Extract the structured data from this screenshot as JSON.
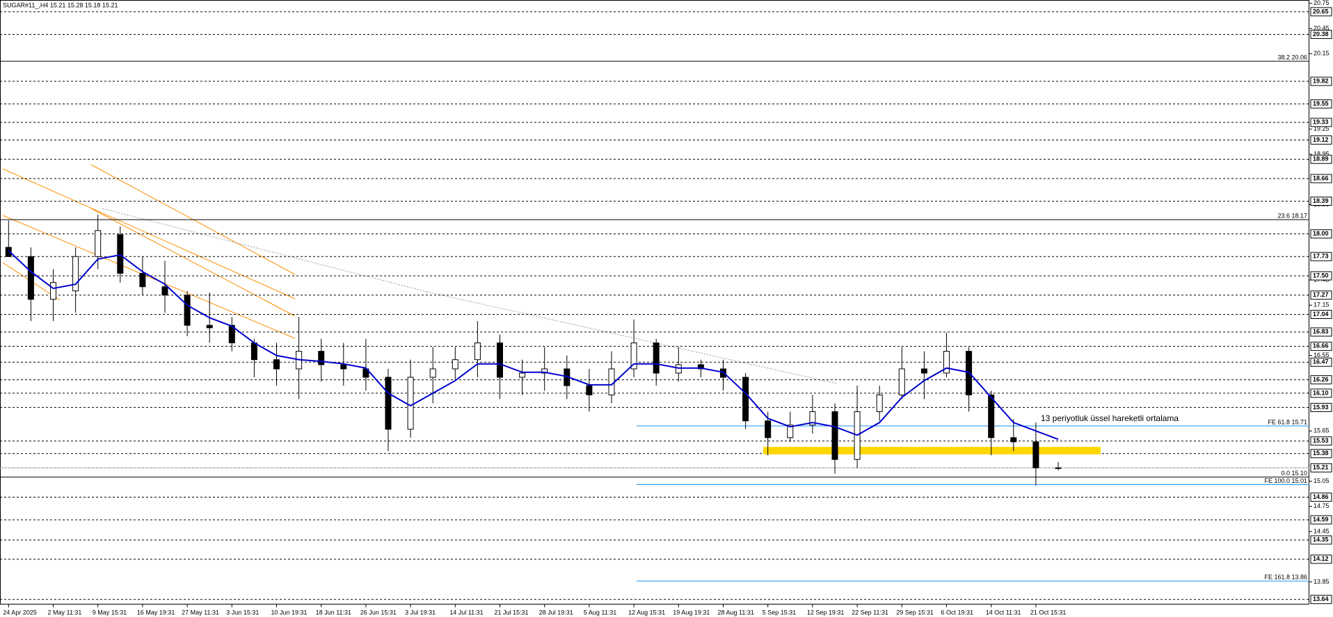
{
  "chart_data": {
    "type": "candlestick",
    "title": "SUGAR#11_,H4  15.21 15.28 15.18 15.21",
    "categories": [
      "24 Apr 2025",
      null,
      "2 May 11:31",
      null,
      "9 May 15:31",
      null,
      "16 May 19:31",
      null,
      "27 May 11:31",
      null,
      "3 Jun 15:31",
      null,
      "10 Jun 19:31",
      null,
      "18 Jun 11:31",
      null,
      "26 Jun 15:31",
      null,
      "3 Jul 19:31",
      null,
      "14 Jul 11:31",
      null,
      "21 Jul 15:31",
      null,
      "28 Jul 19:31",
      null,
      "5 Aug 11:31",
      null,
      "12 Aug 15:31",
      null,
      "19 Aug 19:31",
      null,
      "28 Aug 11:31",
      null,
      "5 Sep 15:31",
      null,
      "12 Sep 19:31",
      null,
      "22 Sep 11:31",
      null,
      "29 Sep 15:31",
      null,
      "6 Oct 19:31",
      null,
      "14 Oct 11:31",
      null,
      "21 Oct 15:31",
      null
    ],
    "open": [
      17.84,
      17.73,
      17.22,
      17.32,
      17.73,
      17.99,
      17.53,
      17.37,
      17.27,
      16.91,
      16.91,
      16.7,
      16.5,
      16.39,
      16.6,
      16.44,
      16.39,
      16.29,
      15.67,
      16.29,
      16.39,
      16.5,
      16.7,
      16.29,
      16.34,
      16.39,
      16.19,
      16.08,
      16.39,
      16.7,
      16.34,
      16.44,
      16.39,
      16.29,
      15.77,
      15.57,
      15.72,
      15.88,
      15.31,
      15.88,
      16.08,
      16.39,
      16.34,
      16.6,
      16.08,
      15.57,
      15.52,
      15.21
    ],
    "high": [
      18.16,
      17.84,
      17.58,
      17.84,
      18.23,
      18.09,
      17.73,
      17.68,
      17.32,
      17.3,
      17.01,
      16.75,
      16.7,
      17.01,
      16.75,
      16.7,
      16.75,
      16.39,
      16.5,
      16.65,
      16.65,
      16.96,
      16.8,
      16.5,
      16.65,
      16.55,
      16.39,
      16.6,
      16.98,
      16.75,
      16.65,
      16.5,
      16.5,
      16.34,
      15.88,
      15.88,
      16.08,
      15.98,
      16.19,
      16.19,
      16.65,
      16.6,
      16.82,
      16.65,
      16.13,
      15.79,
      15.75,
      15.28
    ],
    "low": [
      17.73,
      16.96,
      16.96,
      17.06,
      17.58,
      17.42,
      17.27,
      17.06,
      16.78,
      16.7,
      16.6,
      16.29,
      16.19,
      16.03,
      16.24,
      16.19,
      16.13,
      15.41,
      15.57,
      15.98,
      16.24,
      16.29,
      16.03,
      16.08,
      16.13,
      16.03,
      15.88,
      15.98,
      16.29,
      16.19,
      16.24,
      16.29,
      16.13,
      15.67,
      15.36,
      15.52,
      15.62,
      15.14,
      15.21,
      15.77,
      16.03,
      16.03,
      16.29,
      15.88,
      15.36,
      15.41,
      15.0,
      15.18
    ],
    "close": [
      17.73,
      17.22,
      17.42,
      17.73,
      18.04,
      17.53,
      17.37,
      17.27,
      16.91,
      16.88,
      16.7,
      16.5,
      16.39,
      16.6,
      16.44,
      16.39,
      16.29,
      15.67,
      16.29,
      16.39,
      16.5,
      16.7,
      16.29,
      16.34,
      16.39,
      16.19,
      16.08,
      16.39,
      16.7,
      16.34,
      16.44,
      16.39,
      16.29,
      15.77,
      15.57,
      15.72,
      15.88,
      15.31,
      15.88,
      16.08,
      16.39,
      16.34,
      16.6,
      16.08,
      15.57,
      15.52,
      15.21,
      15.21
    ],
    "up_color": "#ffffff",
    "down_color": "#000000",
    "ema": {
      "name": "13 periyotluk üssel hareketli ortalama",
      "color": "#0000cd",
      "values": [
        17.8,
        17.55,
        17.35,
        17.4,
        17.7,
        17.75,
        17.55,
        17.4,
        17.15,
        17.0,
        16.9,
        16.7,
        16.55,
        16.5,
        16.48,
        16.45,
        16.4,
        16.1,
        15.95,
        16.1,
        16.25,
        16.45,
        16.45,
        16.35,
        16.35,
        16.3,
        16.2,
        16.2,
        16.45,
        16.45,
        16.4,
        16.4,
        16.35,
        16.1,
        15.8,
        15.7,
        15.75,
        15.7,
        15.6,
        15.75,
        16.05,
        16.25,
        16.4,
        16.35,
        16.05,
        15.75,
        15.65,
        15.55
      ]
    },
    "ylim": [
      13.58,
      20.79
    ],
    "yticks": [
      20.75,
      20.45,
      20.15,
      19.25,
      18.95,
      18.35,
      17.45,
      17.15,
      16.55,
      15.65,
      15.05,
      14.75,
      14.45,
      13.85
    ],
    "levels": [
      20.65,
      20.38,
      19.82,
      19.55,
      19.33,
      19.12,
      18.89,
      18.66,
      18.39,
      {
        "value": 18,
        "label": "18.00"
      },
      17.73,
      {
        "value": 17.5,
        "label": "17.50"
      },
      17.27,
      17.04,
      16.83,
      16.66,
      16.47,
      16.26,
      {
        "value": 16.1,
        "label": "16.10"
      },
      15.93,
      15.53,
      15.38,
      15.21,
      14.86,
      14.59,
      14.35,
      14.12,
      13.64
    ],
    "fib_levels": [
      {
        "value": 20.06,
        "label": "38.2 20.06"
      },
      {
        "value": 18.17,
        "label": "23.6 18.17"
      },
      {
        "value": 15.1,
        "label": "0.0 15.10"
      }
    ],
    "fe_levels": [
      {
        "value": 15.71,
        "label": "FE 61.8 15.71"
      },
      {
        "value": 15.01,
        "label": "FE 100.0 15.01"
      },
      {
        "value": 13.86,
        "label": "FE 161.8 13.86"
      }
    ],
    "fe_color": "#1e90ff",
    "zone": [
      15.37,
      15.46
    ],
    "zone_color": "#ffd700"
  }
}
